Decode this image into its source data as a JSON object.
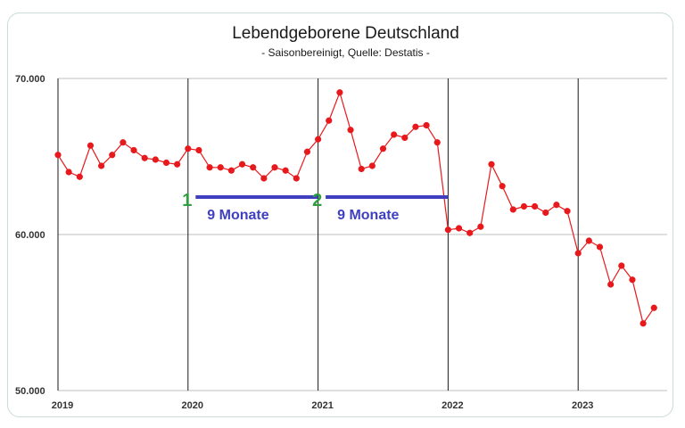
{
  "chart_data": {
    "type": "line",
    "title": "Lebendgeborene Deutschland",
    "subtitle": "- Saisonbereinigt, Quelle: Destatis -",
    "xlabel": "",
    "ylabel": "",
    "ylim": [
      50000,
      70000
    ],
    "yticks": [
      {
        "value": 70000,
        "label": "70.000"
      },
      {
        "value": 60000,
        "label": "60.000"
      },
      {
        "value": 50000,
        "label": "50.000"
      }
    ],
    "xticks": [
      {
        "value": 0,
        "label": "2019"
      },
      {
        "value": 12,
        "label": "2020"
      },
      {
        "value": 24,
        "label": "2021"
      },
      {
        "value": 36,
        "label": "2022"
      },
      {
        "value": 48,
        "label": "2023"
      }
    ],
    "grid": true,
    "line_color": "#e8191c",
    "series": [
      {
        "values": [
          65100,
          64000,
          63700,
          65700,
          64400,
          65100,
          65900,
          65400,
          64900,
          64800,
          64600,
          64500,
          65500,
          65400,
          64300,
          64300,
          64100,
          64500,
          64300,
          63600,
          64300,
          64100,
          63600,
          65300,
          66100,
          67300,
          69100,
          66700,
          64200,
          64400,
          65500,
          66400,
          66200,
          66900,
          67000,
          65900,
          60300,
          60400,
          60100,
          60500,
          64500,
          63100,
          61600,
          61800,
          61800,
          61400,
          61900,
          61500,
          58800,
          59600,
          59200,
          56800,
          58000,
          57100,
          54300,
          55300
        ]
      }
    ],
    "annotations": [
      {
        "number": "1",
        "text": "9 Monate",
        "x_start": 12.7,
        "x_end": 24.0,
        "level": 62400
      },
      {
        "number": "2",
        "text": "9 Monate",
        "x_start": 24.7,
        "x_end": 36.0,
        "level": 62400
      }
    ],
    "annotation_number_color": "#2e9e3f",
    "annotation_color": "#3f3fbf"
  }
}
